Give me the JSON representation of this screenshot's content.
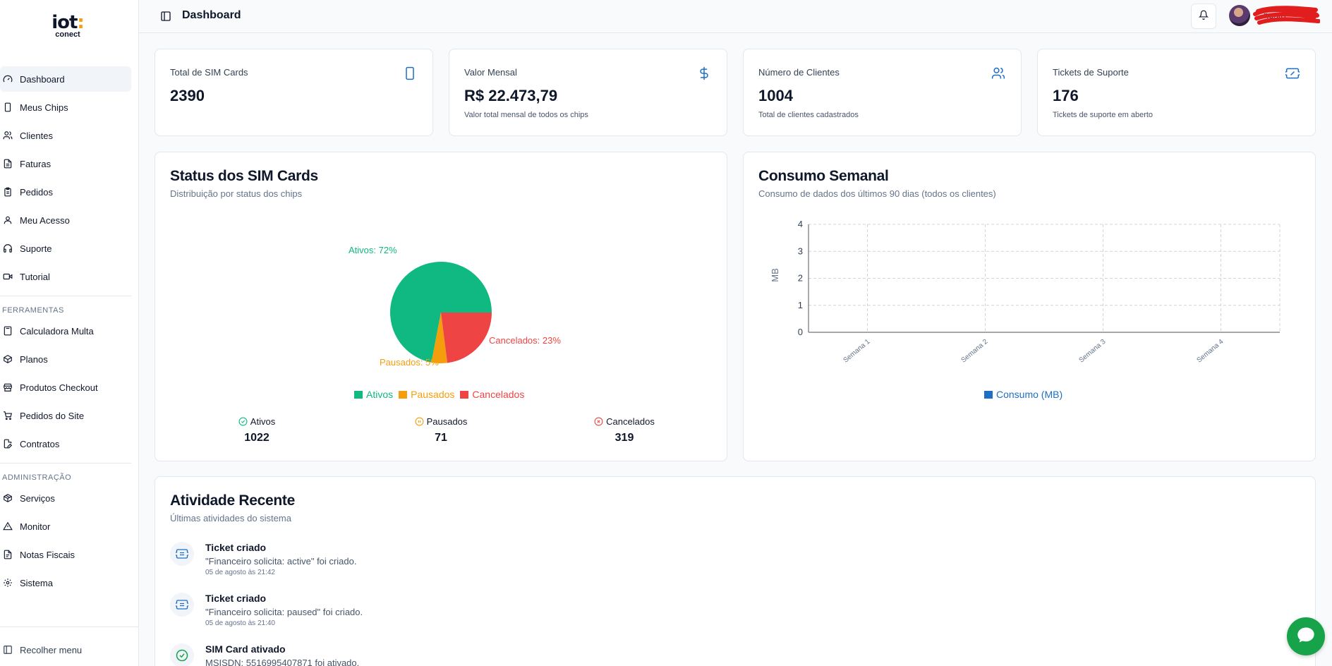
{
  "logo": {
    "line1": "iot",
    "line2": "conect"
  },
  "sidebar": {
    "items": [
      {
        "label": "Dashboard",
        "icon": "gauge-icon"
      },
      {
        "label": "Meus Chips",
        "icon": "smartphone-icon"
      },
      {
        "label": "Clientes",
        "icon": "users-icon"
      },
      {
        "label": "Faturas",
        "icon": "file-icon"
      },
      {
        "label": "Pedidos",
        "icon": "clipboard-icon"
      },
      {
        "label": "Meu Acesso",
        "icon": "user-icon"
      },
      {
        "label": "Suporte",
        "icon": "headphones-icon"
      },
      {
        "label": "Tutorial",
        "icon": "video-icon"
      }
    ],
    "section_tools": "FERRAMENTAS",
    "tools": [
      {
        "label": "Calculadora Multa",
        "icon": "calculator-icon"
      },
      {
        "label": "Planos",
        "icon": "package-icon"
      },
      {
        "label": "Produtos Checkout",
        "icon": "store-icon"
      },
      {
        "label": "Pedidos do Site",
        "icon": "cart-icon"
      },
      {
        "label": "Contratos",
        "icon": "file-edit-icon"
      }
    ],
    "section_admin": "ADMINISTRAÇÃO",
    "admin": [
      {
        "label": "Serviços",
        "icon": "box-icon"
      },
      {
        "label": "Monitor",
        "icon": "alert-triangle-icon"
      },
      {
        "label": "Notas Fiscais",
        "icon": "receipt-icon"
      },
      {
        "label": "Sistema",
        "icon": "settings-icon"
      }
    ],
    "collapse_label": "Recolher menu"
  },
  "header": {
    "title": "Dashboard",
    "username": "...nesto"
  },
  "stats": [
    {
      "label": "Total de SIM Cards",
      "value": "2390",
      "sub": "",
      "icon": "smartphone-icon"
    },
    {
      "label": "Valor Mensal",
      "value": "R$ 22.473,79",
      "sub": "Valor total mensal de todos os chips",
      "icon": "dollar-icon"
    },
    {
      "label": "Número de Clientes",
      "value": "1004",
      "sub": "Total de clientes cadastrados",
      "icon": "users-icon"
    },
    {
      "label": "Tickets de Suporte",
      "value": "176",
      "sub": "Tickets de suporte em aberto",
      "icon": "ticket-icon"
    }
  ],
  "status_panel": {
    "title": "Status dos SIM Cards",
    "subtitle": "Distribuição por status dos chips",
    "labels": {
      "ativos": "Ativos: 72%",
      "pausados": "Pausados: 5%",
      "cancelados": "Cancelados: 23%"
    },
    "legend": [
      "Ativos",
      "Pausados",
      "Cancelados"
    ],
    "counts": [
      {
        "label": "Ativos",
        "value": "1022"
      },
      {
        "label": "Pausados",
        "value": "71"
      },
      {
        "label": "Cancelados",
        "value": "319"
      }
    ],
    "colors": {
      "ativos": "#10b981",
      "pausados": "#f59e0b",
      "cancelados": "#ef4444"
    }
  },
  "consumo_panel": {
    "title": "Consumo Semanal",
    "subtitle": "Consumo de dados dos últimos 90 dias (todos os clientes)",
    "legend": "Consumo (MB)",
    "color": "#1d6fc4"
  },
  "chart_data": [
    {
      "type": "pie",
      "categories": [
        "Ativos",
        "Pausados",
        "Cancelados"
      ],
      "values": [
        72,
        5,
        23
      ],
      "title": "",
      "legend_position": "bottom"
    },
    {
      "type": "bar",
      "categories": [
        "Semana 1",
        "Semana 2",
        "Semana 3",
        "Semana 4"
      ],
      "series": [
        {
          "name": "Consumo (MB)",
          "values": [
            0,
            0,
            0,
            0
          ]
        }
      ],
      "ylabel": "MB",
      "ylim": [
        0,
        4
      ],
      "yticks": [
        "0",
        "1",
        "2",
        "3",
        "4"
      ],
      "grid": true,
      "legend_position": "bottom"
    }
  ],
  "activity": {
    "title": "Atividade Recente",
    "subtitle": "Últimas atividades do sistema",
    "items": [
      {
        "title": "Ticket criado",
        "desc": "\"Financeiro solicita: active\" foi criado.",
        "time": "05 de agosto às 21:42",
        "icon": "ticket-icon"
      },
      {
        "title": "Ticket criado",
        "desc": "\"Financeiro solicita: paused\" foi criado.",
        "time": "05 de agosto às 21:40",
        "icon": "ticket-icon"
      },
      {
        "title": "SIM Card ativado",
        "desc": "MSISDN: 5516995407871 foi ativado.",
        "time": "",
        "icon": "check-circle-icon"
      }
    ]
  }
}
